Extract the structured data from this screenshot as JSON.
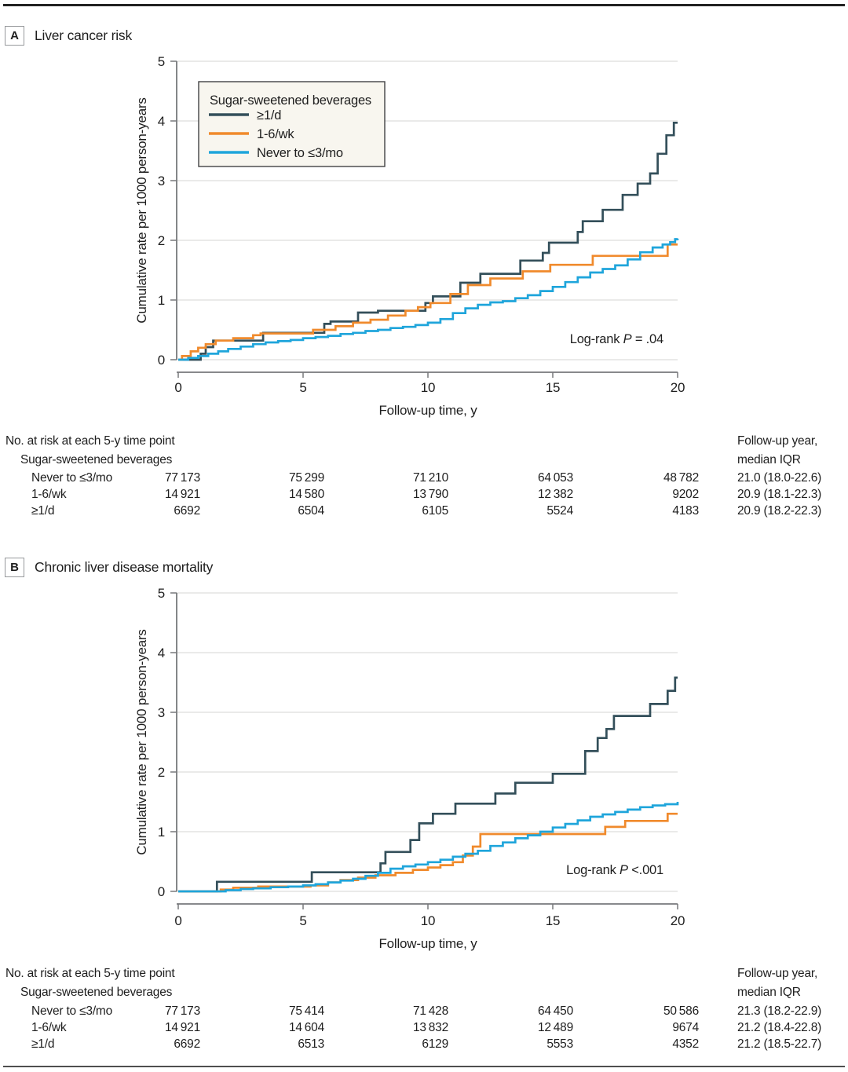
{
  "figure": {
    "panels": [
      {
        "label": "A",
        "title": "Liver cancer risk",
        "y_axis_label": "Cumulative rate per 1000 person-years",
        "x_axis_label": "Follow-up time, y",
        "y_ticks": [
          0,
          1,
          2,
          3,
          4,
          5
        ],
        "x_ticks": [
          0,
          5,
          10,
          15,
          20
        ],
        "log_rank": {
          "prefix": "Log-rank ",
          "p": "P",
          "value": " = .04"
        },
        "legend": {
          "title": "Sugar-sweetened beverages",
          "entries": [
            {
              "label": "≥1/d",
              "color": "#334F5A"
            },
            {
              "label": "1-6/wk",
              "color": "#F08A2C"
            },
            {
              "label": "Never to ≤3/mo",
              "color": "#1FA5DB"
            }
          ]
        },
        "risk_table": {
          "header": "No. at risk at each 5-y time point",
          "subheader": "Sugar-sweetened beverages",
          "followup_header_line1": "Follow-up year,",
          "followup_header_line2": "median IQR",
          "rows": [
            {
              "label": "Never to ≤3/mo",
              "counts": [
                "77 173",
                "75 299",
                "71 210",
                "64 053",
                "48 782"
              ],
              "followup": "21.0 (18.0-22.6)"
            },
            {
              "label": "1-6/wk",
              "counts": [
                "14 921",
                "14 580",
                "13 790",
                "12 382",
                "9202"
              ],
              "followup": "20.9 (18.1-22.3)"
            },
            {
              "label": "≥1/d",
              "counts": [
                "6692",
                "6504",
                "6105",
                "5524",
                "4183"
              ],
              "followup": "20.9 (18.2-22.3)"
            }
          ]
        }
      },
      {
        "label": "B",
        "title": "Chronic liver disease mortality",
        "y_axis_label": "Cumulative rate per 1000 person-years",
        "x_axis_label": "Follow-up time, y",
        "y_ticks": [
          0,
          1,
          2,
          3,
          4,
          5
        ],
        "x_ticks": [
          0,
          5,
          10,
          15,
          20
        ],
        "log_rank": {
          "prefix": "Log-rank ",
          "p": "P",
          "value": " <.001"
        },
        "legend": null,
        "risk_table": {
          "header": "No. at risk at each 5-y time point",
          "subheader": "Sugar-sweetened beverages",
          "followup_header_line1": "Follow-up year,",
          "followup_header_line2": "median IQR",
          "rows": [
            {
              "label": "Never to ≤3/mo",
              "counts": [
                "77 173",
                "75 414",
                "71 428",
                "64 450",
                "50 586"
              ],
              "followup": "21.3 (18.2-22.9)"
            },
            {
              "label": "1-6/wk",
              "counts": [
                "14 921",
                "14 604",
                "13 832",
                "12 489",
                "9674"
              ],
              "followup": "21.2 (18.4-22.8)"
            },
            {
              "label": "≥1/d",
              "counts": [
                "6692",
                "6513",
                "6129",
                "5553",
                "4352"
              ],
              "followup": "21.2 (18.5-22.7)"
            }
          ]
        }
      }
    ]
  },
  "chart_data": [
    {
      "type": "line",
      "style": "step",
      "title": "Liver cancer risk",
      "xlabel": "Follow-up time, y",
      "ylabel": "Cumulative rate per 1000 person-years",
      "xlim": [
        0,
        20
      ],
      "ylim": [
        0,
        5
      ],
      "xticks": [
        0,
        5,
        10,
        15,
        20
      ],
      "yticks": [
        0,
        1,
        2,
        3,
        4,
        5
      ],
      "grid": true,
      "legend_position": "upper-left",
      "legend_title": "Sugar-sweetened beverages",
      "annotation": "Log-rank P = .04",
      "series": [
        {
          "name": "≥1/d",
          "color": "#334F5A",
          "points": [
            [
              0,
              0
            ],
            [
              0.9,
              0.1
            ],
            [
              1.1,
              0.21
            ],
            [
              1.4,
              0.32
            ],
            [
              3.4,
              0.45
            ],
            [
              5.85,
              0.6
            ],
            [
              6.1,
              0.64
            ],
            [
              7.2,
              0.79
            ],
            [
              8.0,
              0.82
            ],
            [
              9.9,
              0.95
            ],
            [
              10.2,
              1.06
            ],
            [
              11.3,
              1.29
            ],
            [
              12.1,
              1.44
            ],
            [
              13.7,
              1.66
            ],
            [
              14.6,
              1.79
            ],
            [
              14.85,
              1.96
            ],
            [
              16.0,
              2.14
            ],
            [
              16.2,
              2.32
            ],
            [
              17.0,
              2.51
            ],
            [
              17.8,
              2.76
            ],
            [
              18.4,
              2.95
            ],
            [
              18.9,
              3.12
            ],
            [
              19.2,
              3.45
            ],
            [
              19.55,
              3.76
            ],
            [
              19.85,
              3.97
            ],
            [
              20,
              3.97
            ]
          ]
        },
        {
          "name": "1-6/wk",
          "color": "#F08A2C",
          "points": [
            [
              0,
              0
            ],
            [
              0.15,
              0.06
            ],
            [
              0.5,
              0.14
            ],
            [
              0.8,
              0.2
            ],
            [
              1.1,
              0.26
            ],
            [
              1.5,
              0.32
            ],
            [
              2.2,
              0.36
            ],
            [
              3.0,
              0.41
            ],
            [
              3.3,
              0.44
            ],
            [
              5.4,
              0.5
            ],
            [
              6.3,
              0.56
            ],
            [
              7.0,
              0.62
            ],
            [
              7.7,
              0.67
            ],
            [
              8.4,
              0.74
            ],
            [
              9.1,
              0.82
            ],
            [
              9.6,
              0.88
            ],
            [
              10.1,
              0.95
            ],
            [
              10.9,
              1.1
            ],
            [
              11.6,
              1.25
            ],
            [
              12.5,
              1.36
            ],
            [
              13.8,
              1.48
            ],
            [
              14.9,
              1.59
            ],
            [
              16.6,
              1.74
            ],
            [
              19.6,
              1.93
            ],
            [
              20,
              1.93
            ]
          ]
        },
        {
          "name": "Never to ≤3/mo",
          "color": "#1FA5DB",
          "points": [
            [
              0,
              0
            ],
            [
              0.4,
              0.03
            ],
            [
              0.8,
              0.06
            ],
            [
              1.2,
              0.1
            ],
            [
              1.6,
              0.14
            ],
            [
              2.0,
              0.18
            ],
            [
              2.5,
              0.22
            ],
            [
              3.0,
              0.26
            ],
            [
              3.5,
              0.29
            ],
            [
              4.0,
              0.31
            ],
            [
              4.5,
              0.33
            ],
            [
              5.0,
              0.36
            ],
            [
              5.5,
              0.38
            ],
            [
              6.0,
              0.4
            ],
            [
              6.5,
              0.43
            ],
            [
              7.0,
              0.45
            ],
            [
              7.5,
              0.48
            ],
            [
              8.0,
              0.5
            ],
            [
              8.5,
              0.53
            ],
            [
              9.0,
              0.55
            ],
            [
              9.5,
              0.58
            ],
            [
              10.0,
              0.62
            ],
            [
              10.5,
              0.68
            ],
            [
              11.0,
              0.78
            ],
            [
              11.5,
              0.86
            ],
            [
              12.0,
              0.92
            ],
            [
              12.5,
              0.96
            ],
            [
              13.0,
              0.98
            ],
            [
              13.5,
              1.03
            ],
            [
              14.0,
              1.08
            ],
            [
              14.5,
              1.15
            ],
            [
              15.0,
              1.22
            ],
            [
              15.5,
              1.3
            ],
            [
              16.0,
              1.38
            ],
            [
              16.5,
              1.46
            ],
            [
              17.0,
              1.52
            ],
            [
              17.5,
              1.58
            ],
            [
              18.0,
              1.68
            ],
            [
              18.5,
              1.8
            ],
            [
              19.0,
              1.88
            ],
            [
              19.4,
              1.93
            ],
            [
              19.7,
              1.97
            ],
            [
              19.9,
              2.02
            ],
            [
              20,
              2.03
            ]
          ]
        }
      ]
    },
    {
      "type": "line",
      "style": "step",
      "title": "Chronic liver disease mortality",
      "xlabel": "Follow-up time, y",
      "ylabel": "Cumulative rate per 1000 person-years",
      "xlim": [
        0,
        20
      ],
      "ylim": [
        0,
        5
      ],
      "xticks": [
        0,
        5,
        10,
        15,
        20
      ],
      "yticks": [
        0,
        1,
        2,
        3,
        4,
        5
      ],
      "grid": true,
      "legend_position": "none",
      "annotation": "Log-rank P <.001",
      "series": [
        {
          "name": "≥1/d",
          "color": "#334F5A",
          "points": [
            [
              0,
              0
            ],
            [
              1.55,
              0.16
            ],
            [
              5.35,
              0.32
            ],
            [
              8.1,
              0.47
            ],
            [
              8.3,
              0.66
            ],
            [
              9.3,
              0.86
            ],
            [
              9.65,
              1.14
            ],
            [
              10.2,
              1.3
            ],
            [
              11.1,
              1.47
            ],
            [
              12.7,
              1.64
            ],
            [
              13.5,
              1.82
            ],
            [
              15.0,
              1.97
            ],
            [
              16.3,
              2.35
            ],
            [
              16.8,
              2.57
            ],
            [
              17.15,
              2.72
            ],
            [
              17.45,
              2.94
            ],
            [
              18.9,
              3.14
            ],
            [
              19.6,
              3.36
            ],
            [
              19.9,
              3.58
            ],
            [
              20,
              3.58
            ]
          ]
        },
        {
          "name": "1-6/wk",
          "color": "#F08A2C",
          "points": [
            [
              0,
              0
            ],
            [
              1.7,
              0.03
            ],
            [
              2.2,
              0.06
            ],
            [
              3.2,
              0.08
            ],
            [
              5.3,
              0.1
            ],
            [
              6.0,
              0.15
            ],
            [
              6.5,
              0.19
            ],
            [
              7.2,
              0.23
            ],
            [
              7.9,
              0.27
            ],
            [
              8.7,
              0.31
            ],
            [
              9.4,
              0.36
            ],
            [
              10.0,
              0.4
            ],
            [
              10.5,
              0.44
            ],
            [
              11.0,
              0.49
            ],
            [
              11.4,
              0.6
            ],
            [
              11.8,
              0.75
            ],
            [
              12.1,
              0.96
            ],
            [
              17.1,
              1.08
            ],
            [
              17.9,
              1.18
            ],
            [
              19.6,
              1.3
            ],
            [
              20,
              1.3
            ]
          ]
        },
        {
          "name": "Never to ≤3/mo",
          "color": "#1FA5DB",
          "points": [
            [
              0,
              0
            ],
            [
              1.9,
              0.02
            ],
            [
              2.5,
              0.04
            ],
            [
              3.0,
              0.05
            ],
            [
              3.7,
              0.07
            ],
            [
              4.4,
              0.08
            ],
            [
              5.0,
              0.1
            ],
            [
              5.5,
              0.12
            ],
            [
              6.0,
              0.15
            ],
            [
              6.5,
              0.18
            ],
            [
              7.0,
              0.21
            ],
            [
              7.5,
              0.26
            ],
            [
              8.0,
              0.31
            ],
            [
              8.5,
              0.38
            ],
            [
              9.0,
              0.42
            ],
            [
              9.5,
              0.45
            ],
            [
              10.0,
              0.49
            ],
            [
              10.5,
              0.53
            ],
            [
              11.0,
              0.58
            ],
            [
              11.5,
              0.63
            ],
            [
              12.0,
              0.68
            ],
            [
              12.5,
              0.76
            ],
            [
              13.0,
              0.82
            ],
            [
              13.5,
              0.89
            ],
            [
              14.0,
              0.94
            ],
            [
              14.5,
              1.0
            ],
            [
              15.0,
              1.07
            ],
            [
              15.5,
              1.13
            ],
            [
              16.0,
              1.19
            ],
            [
              16.5,
              1.25
            ],
            [
              17.0,
              1.29
            ],
            [
              17.5,
              1.33
            ],
            [
              18.0,
              1.37
            ],
            [
              18.5,
              1.41
            ],
            [
              19.0,
              1.44
            ],
            [
              19.5,
              1.46
            ],
            [
              20,
              1.5
            ]
          ]
        }
      ]
    }
  ],
  "colors": {
    "series_daily": "#334F5A",
    "series_weekly": "#F08A2C",
    "series_never": "#1FA5DB",
    "grid": "#DEDEDC",
    "axis": "#77787B",
    "text": "#1E1E1E",
    "legend_bg": "#F8F6EF",
    "legend_border": "#414244"
  }
}
